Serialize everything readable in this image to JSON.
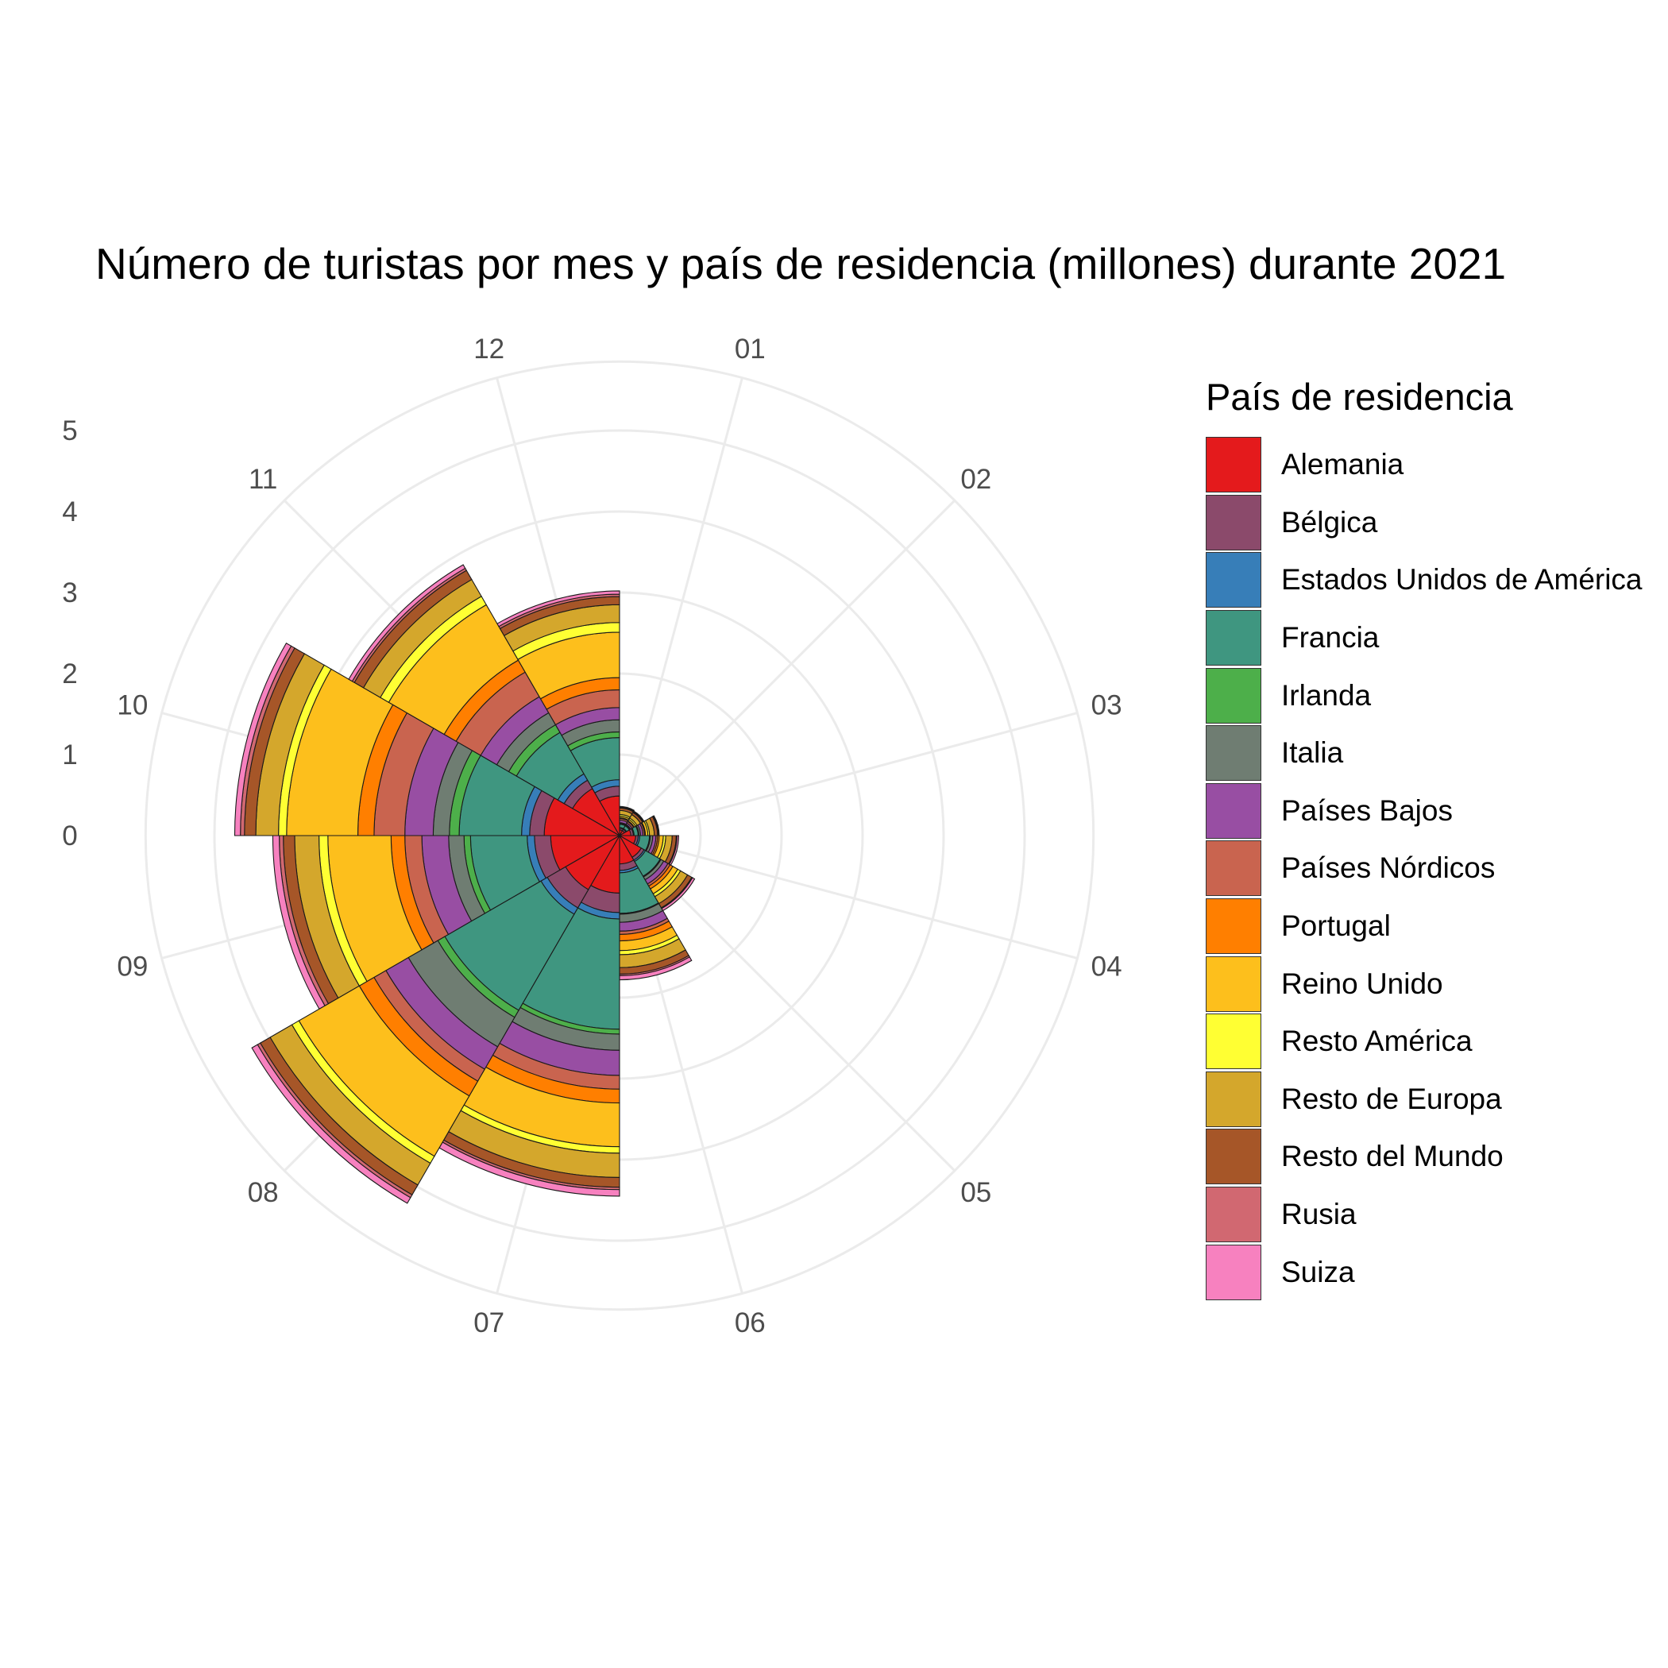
{
  "chart_data": {
    "type": "polar-stacked-bar",
    "title": "Número de turistas por mes y país de residencia (millones) durante 2021",
    "legend_title": "País de residencia",
    "legend_position": "right",
    "grid": true,
    "categories": [
      "01",
      "02",
      "03",
      "04",
      "05",
      "06",
      "07",
      "08",
      "09",
      "10",
      "11",
      "12"
    ],
    "r_ticks": [
      "0",
      "1",
      "2",
      "3",
      "4",
      "5"
    ],
    "r_range": [
      0,
      5
    ],
    "series": [
      {
        "name": "Alemania",
        "color": "#E41A1C",
        "values": [
          0.07,
          0.07,
          0.14,
          0.2,
          0.31,
          0.35,
          0.71,
          0.77,
          0.85,
          0.93,
          0.67,
          0.49
        ]
      },
      {
        "name": "Bélgica",
        "color": "#8B4A6B",
        "values": [
          0.02,
          0.02,
          0.03,
          0.03,
          0.04,
          0.08,
          0.24,
          0.26,
          0.2,
          0.18,
          0.12,
          0.12
        ]
      },
      {
        "name": "Estados Unidos de América",
        "color": "#377EB8",
        "values": [
          0.01,
          0.01,
          0.01,
          0.02,
          0.02,
          0.03,
          0.08,
          0.09,
          0.09,
          0.1,
          0.09,
          0.08
        ]
      },
      {
        "name": "Francia",
        "color": "#3F9680",
        "values": [
          0.04,
          0.04,
          0.05,
          0.12,
          0.21,
          0.5,
          1.36,
          1.37,
          0.7,
          0.77,
          0.59,
          0.52
        ]
      },
      {
        "name": "Irlanda",
        "color": "#4DAF4A",
        "values": [
          0.01,
          0.01,
          0.01,
          0.01,
          0.01,
          0.01,
          0.06,
          0.1,
          0.08,
          0.12,
          0.11,
          0.07
        ]
      },
      {
        "name": "Italia",
        "color": "#6F7D72",
        "values": [
          0.01,
          0.01,
          0.02,
          0.03,
          0.04,
          0.1,
          0.2,
          0.42,
          0.19,
          0.2,
          0.17,
          0.15
        ]
      },
      {
        "name": "Países Bajos",
        "color": "#984EA3",
        "values": [
          0.03,
          0.02,
          0.03,
          0.04,
          0.06,
          0.11,
          0.31,
          0.32,
          0.33,
          0.35,
          0.23,
          0.15
        ]
      },
      {
        "name": "Países Nórdicos",
        "color": "#C9644F",
        "values": [
          0.02,
          0.02,
          0.02,
          0.02,
          0.03,
          0.04,
          0.17,
          0.17,
          0.21,
          0.38,
          0.35,
          0.22
        ]
      },
      {
        "name": "Portugal",
        "color": "#FF7F00",
        "values": [
          0.01,
          0.01,
          0.01,
          0.02,
          0.04,
          0.08,
          0.17,
          0.21,
          0.17,
          0.2,
          0.17,
          0.15
        ]
      },
      {
        "name": "Reino Unido",
        "color": "#FDBF1C",
        "values": [
          0.02,
          0.02,
          0.03,
          0.05,
          0.07,
          0.12,
          0.54,
          0.86,
          0.78,
          0.88,
          0.79,
          0.56
        ]
      },
      {
        "name": "Resto América",
        "color": "#FFFF33",
        "values": [
          0.02,
          0.02,
          0.02,
          0.03,
          0.04,
          0.05,
          0.08,
          0.1,
          0.11,
          0.1,
          0.12,
          0.12
        ]
      },
      {
        "name": "Resto de Europa",
        "color": "#D4A72C",
        "values": [
          0.05,
          0.05,
          0.06,
          0.08,
          0.1,
          0.16,
          0.3,
          0.31,
          0.3,
          0.28,
          0.24,
          0.22
        ]
      },
      {
        "name": "Resto del Mundo",
        "color": "#A65628",
        "values": [
          0.03,
          0.03,
          0.04,
          0.05,
          0.06,
          0.08,
          0.12,
          0.14,
          0.14,
          0.14,
          0.13,
          0.1
        ]
      },
      {
        "name": "Rusia",
        "color": "#D16871",
        "values": [
          0.01,
          0.01,
          0.01,
          0.01,
          0.01,
          0.02,
          0.03,
          0.04,
          0.05,
          0.05,
          0.03,
          0.03
        ]
      },
      {
        "name": "Suiza",
        "color": "#F781BF",
        "values": [
          0.01,
          0.01,
          0.01,
          0.02,
          0.03,
          0.05,
          0.08,
          0.08,
          0.08,
          0.07,
          0.05,
          0.04
        ]
      }
    ]
  }
}
